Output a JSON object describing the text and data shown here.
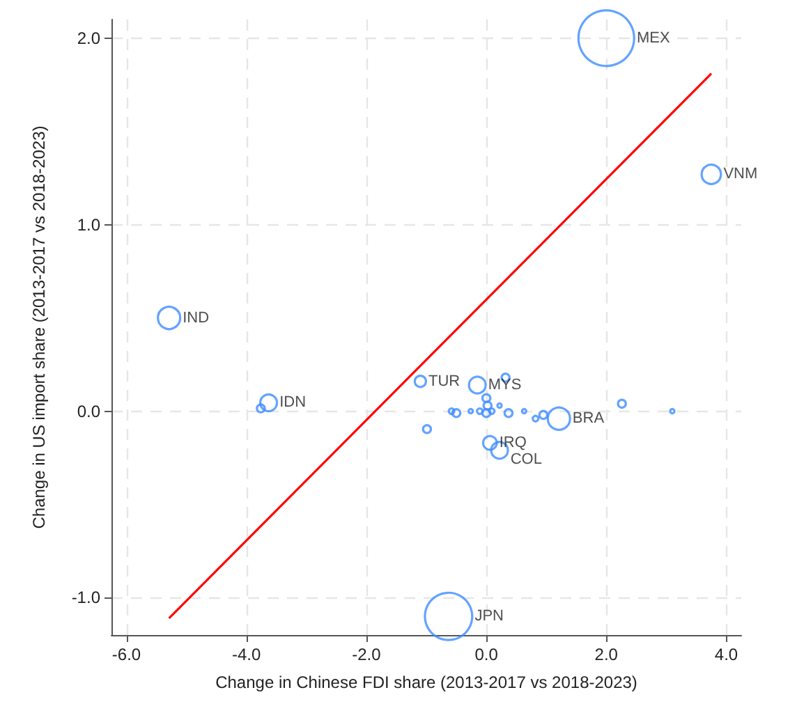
{
  "chart_data": {
    "type": "bubble",
    "xlabel": "Change in Chinese FDI share (2013-2017 vs 2018-2023)",
    "ylabel": "Change in US import share (2013-2017 vs 2018-2023)",
    "xlim": [
      -6.25,
      4.25
    ],
    "ylim": [
      -1.2,
      2.1
    ],
    "xticks": [
      {
        "value": -6,
        "label": "-6.0"
      },
      {
        "value": -4,
        "label": "-4.0"
      },
      {
        "value": -2,
        "label": "-2.0"
      },
      {
        "value": 0,
        "label": "0.0"
      },
      {
        "value": 2,
        "label": "2.0"
      },
      {
        "value": 4,
        "label": "4.0"
      }
    ],
    "yticks": [
      {
        "value": -1,
        "label": "-1.0"
      },
      {
        "value": 0,
        "label": "0.0"
      },
      {
        "value": 1,
        "label": "1.0"
      },
      {
        "value": 2,
        "label": "2.0"
      }
    ],
    "grid": true,
    "marker": "circle",
    "series": [
      {
        "color": "#3c8cff",
        "x": [
          2.0,
          3.75,
          -5.29,
          -3.63,
          -3.76,
          -1.1,
          -0.15,
          -0.63,
          1.21,
          0.06,
          0.22,
          -0.99,
          -0.58,
          -0.5,
          -0.26,
          -0.11,
          0.0,
          0.02,
          0.0,
          0.09,
          0.22,
          0.32,
          0.37,
          0.63,
          0.82,
          0.95,
          2.26,
          3.1
        ],
        "values": [
          2.0,
          1.27,
          0.5,
          0.045,
          0.015,
          0.16,
          0.14,
          -1.1,
          -0.04,
          -0.17,
          -0.21,
          -0.096,
          0.0,
          -0.01,
          0.0,
          0.0,
          0.07,
          0.03,
          -0.01,
          0.0,
          0.03,
          0.18,
          -0.01,
          0.0,
          -0.04,
          -0.02,
          0.04,
          0.0
        ],
        "sizes": [
          1,
          0.12,
          0.16,
          0.09,
          0.02,
          0.04,
          0.09,
          0.72,
          0.16,
          0.06,
          0.09,
          0.02,
          0.01,
          0.02,
          0.006,
          0.01,
          0.02,
          0.02,
          0.02,
          0.01,
          0.006,
          0.02,
          0.02,
          0.006,
          0.01,
          0.02,
          0.02,
          0.006
        ],
        "value_labels": [
          "MEX",
          "VNM",
          "IND",
          "IDN",
          null,
          "TUR",
          "MYS",
          "JPN",
          "BRA",
          "IRQ",
          "COL",
          null,
          null,
          null,
          null,
          null,
          null,
          null,
          null,
          null,
          null,
          null,
          null,
          null,
          null,
          null,
          null,
          null
        ]
      },
      {
        "type": "line",
        "color": "#ff0000",
        "marker": "none",
        "line_style": "solid",
        "x": [
          -5.29,
          3.75
        ],
        "values": [
          -1.11,
          1.81
        ]
      }
    ]
  }
}
